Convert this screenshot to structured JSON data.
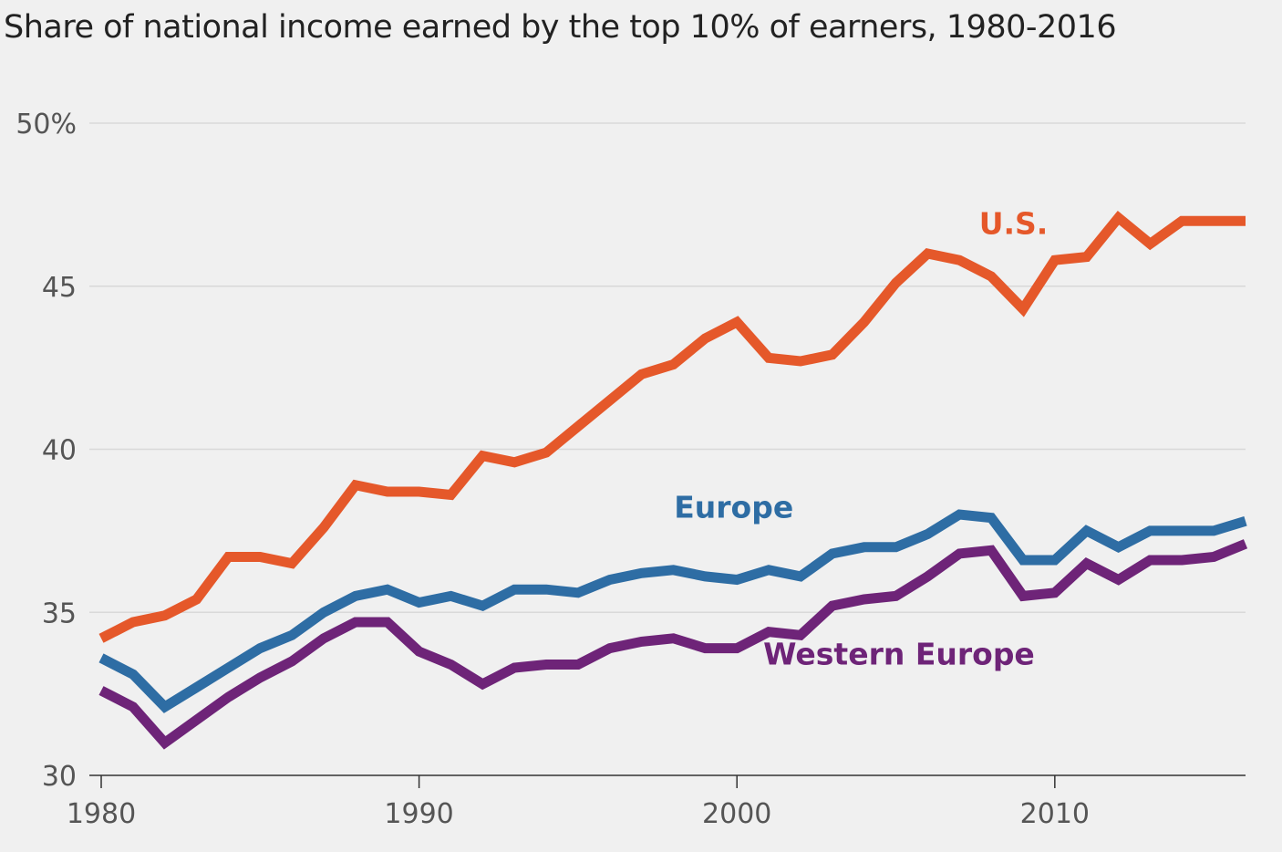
{
  "chart_data": {
    "type": "line",
    "title": "Share of national income earned by the top 10% of earners, 1980-2016",
    "xlabel": "",
    "ylabel": "",
    "x": [
      1980,
      1981,
      1982,
      1983,
      1984,
      1985,
      1986,
      1987,
      1988,
      1989,
      1990,
      1991,
      1992,
      1993,
      1994,
      1995,
      1996,
      1997,
      1998,
      1999,
      2000,
      2001,
      2002,
      2003,
      2004,
      2005,
      2006,
      2007,
      2008,
      2009,
      2010,
      2011,
      2012,
      2013,
      2014,
      2015,
      2016
    ],
    "xlim": [
      1980,
      2016
    ],
    "ylim": [
      30,
      50
    ],
    "x_ticks": [
      {
        "value": 1980,
        "label": "1980"
      },
      {
        "value": 1990,
        "label": "1990"
      },
      {
        "value": 2000,
        "label": "2000"
      },
      {
        "value": 2010,
        "label": "2010"
      }
    ],
    "y_ticks": [
      {
        "value": 50,
        "label": "50%"
      },
      {
        "value": 45,
        "label": "45"
      },
      {
        "value": 40,
        "label": "40"
      },
      {
        "value": 35,
        "label": "35"
      },
      {
        "value": 30,
        "label": "30"
      }
    ],
    "grid": true,
    "series": [
      {
        "name": "U.S.",
        "color": "#e5582a",
        "label_anchor": {
          "x": 2008.7,
          "y": 46.6
        },
        "values": [
          34.2,
          34.7,
          34.9,
          35.4,
          36.7,
          36.7,
          36.5,
          37.6,
          38.9,
          38.7,
          38.7,
          38.6,
          39.8,
          39.6,
          39.9,
          40.7,
          41.5,
          42.3,
          42.6,
          43.4,
          43.9,
          42.8,
          42.7,
          42.9,
          43.9,
          45.1,
          46.0,
          45.8,
          45.3,
          44.3,
          45.8,
          45.9,
          47.1,
          46.3,
          47.0,
          47.0,
          47.0
        ]
      },
      {
        "name": "Europe",
        "color": "#2e6da4",
        "label_anchor": {
          "x": 1999.9,
          "y": 37.9
        },
        "values": [
          33.6,
          33.1,
          32.1,
          32.7,
          33.3,
          33.9,
          34.3,
          35.0,
          35.5,
          35.7,
          35.3,
          35.5,
          35.2,
          35.7,
          35.7,
          35.6,
          36.0,
          36.2,
          36.3,
          36.1,
          36.0,
          36.3,
          36.1,
          36.8,
          37.0,
          37.0,
          37.4,
          38.0,
          37.9,
          36.6,
          36.6,
          37.5,
          37.0,
          37.5,
          37.5,
          37.5,
          37.8
        ]
      },
      {
        "name": "Western Europe",
        "color": "#6e2478",
        "label_anchor": {
          "x": 2005.1,
          "y": 33.4
        },
        "values": [
          32.6,
          32.1,
          31.0,
          31.7,
          32.4,
          33.0,
          33.5,
          34.2,
          34.7,
          34.7,
          33.8,
          33.4,
          32.8,
          33.3,
          33.4,
          33.4,
          33.9,
          34.1,
          34.2,
          33.9,
          33.9,
          34.4,
          34.3,
          35.2,
          35.4,
          35.5,
          36.1,
          36.8,
          36.9,
          35.5,
          35.6,
          36.5,
          36.0,
          36.6,
          36.6,
          36.7,
          37.1
        ]
      }
    ]
  }
}
